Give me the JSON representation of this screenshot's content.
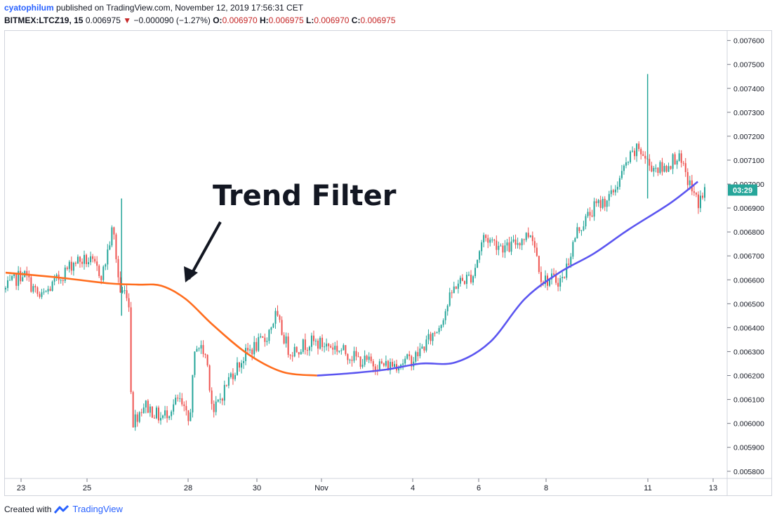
{
  "header": {
    "user": "cyatophilum",
    "published": "published on TradingView.com, November 12, 2019 17:56:31 CET",
    "symbol": "BITMEX:LTCZ19, 15",
    "last": "0.006975",
    "down_glyph": "▼",
    "change": "−0.000090 (−1.27%)",
    "o_label": "O:",
    "o": "0.006970",
    "h_label": "H:",
    "h": "0.006975",
    "l_label": "L:",
    "l": "0.006970",
    "c_label": "C:",
    "c": "0.006975"
  },
  "annotation": "Trend Filter",
  "footer": {
    "created": "Created with",
    "brand": "TradingView"
  },
  "colors": {
    "up": "#26a69a",
    "down": "#ef5350",
    "orange": "#ff6d1e",
    "purple": "#5b55f0",
    "badge": "#26a69a"
  },
  "chart_data": {
    "type": "candlestick",
    "x_ticks": [
      "23",
      "25",
      "28",
      "30",
      "Nov",
      "4",
      "6",
      "8",
      "11",
      "13"
    ],
    "y_ticks": [
      "0.005800",
      "0.005900",
      "0.006000",
      "0.006100",
      "0.006200",
      "0.006300",
      "0.006400",
      "0.006500",
      "0.006600",
      "0.006700",
      "0.006800",
      "0.006900",
      "0.007000",
      "0.007100",
      "0.007200",
      "0.007300",
      "0.007400",
      "0.007500",
      "0.007600"
    ],
    "ylim": [
      0.00577,
      0.00764
    ],
    "last_price": 0.006975,
    "countdown": "03:29",
    "trend_filter": {
      "name": "Trend Filter",
      "bearish_color": "#ff6d1e",
      "bullish_color": "#5b55f0",
      "points": [
        {
          "x": 0.0,
          "y": 0.00663
        },
        {
          "x": 1.5,
          "y": 0.00661
        },
        {
          "x": 3.0,
          "y": 0.006585
        },
        {
          "x": 3.8,
          "y": 0.00658
        },
        {
          "x": 4.5,
          "y": 0.006575
        },
        {
          "x": 5.2,
          "y": 0.00652
        },
        {
          "x": 6.0,
          "y": 0.00641
        },
        {
          "x": 7.0,
          "y": 0.00629
        },
        {
          "x": 8.0,
          "y": 0.006215
        },
        {
          "x": 9.0,
          "y": 0.0062
        },
        {
          "x": 10.0,
          "y": 0.00621
        },
        {
          "x": 11.0,
          "y": 0.006225
        },
        {
          "x": 12.0,
          "y": 0.00625
        },
        {
          "x": 13.0,
          "y": 0.006255
        },
        {
          "x": 14.0,
          "y": 0.00634
        },
        {
          "x": 15.0,
          "y": 0.00652
        },
        {
          "x": 16.0,
          "y": 0.00663
        },
        {
          "x": 17.0,
          "y": 0.00671
        },
        {
          "x": 18.0,
          "y": 0.00681
        },
        {
          "x": 19.2,
          "y": 0.00692
        },
        {
          "x": 20.0,
          "y": 0.00701
        }
      ],
      "switch_x": 9.0
    },
    "price_path": [
      {
        "x": 0.0,
        "y": 0.00656
      },
      {
        "x": 0.5,
        "y": 0.00663
      },
      {
        "x": 1.0,
        "y": 0.00652
      },
      {
        "x": 1.5,
        "y": 0.0066
      },
      {
        "x": 2.0,
        "y": 0.00668
      },
      {
        "x": 2.4,
        "y": 0.00668
      },
      {
        "x": 2.8,
        "y": 0.00662
      },
      {
        "x": 3.1,
        "y": 0.00682
      },
      {
        "x": 3.3,
        "y": 0.00655
      },
      {
        "x": 3.55,
        "y": 0.00655
      },
      {
        "x": 3.65,
        "y": 0.006
      },
      {
        "x": 4.0,
        "y": 0.00608
      },
      {
        "x": 4.5,
        "y": 0.00602
      },
      {
        "x": 5.0,
        "y": 0.0061
      },
      {
        "x": 5.3,
        "y": 0.006
      },
      {
        "x": 5.5,
        "y": 0.00634
      },
      {
        "x": 5.8,
        "y": 0.00628
      },
      {
        "x": 6.0,
        "y": 0.00604
      },
      {
        "x": 6.5,
        "y": 0.0062
      },
      {
        "x": 7.0,
        "y": 0.0063
      },
      {
        "x": 7.5,
        "y": 0.00635
      },
      {
        "x": 7.8,
        "y": 0.00645
      },
      {
        "x": 8.2,
        "y": 0.0063
      },
      {
        "x": 8.8,
        "y": 0.00634
      },
      {
        "x": 9.5,
        "y": 0.00632
      },
      {
        "x": 10.3,
        "y": 0.00626
      },
      {
        "x": 11.0,
        "y": 0.00624
      },
      {
        "x": 11.8,
        "y": 0.00627
      },
      {
        "x": 12.5,
        "y": 0.0064
      },
      {
        "x": 13.0,
        "y": 0.00658
      },
      {
        "x": 13.5,
        "y": 0.00662
      },
      {
        "x": 13.8,
        "y": 0.00678
      },
      {
        "x": 14.5,
        "y": 0.00673
      },
      {
        "x": 15.2,
        "y": 0.0068
      },
      {
        "x": 15.5,
        "y": 0.0066
      },
      {
        "x": 16.1,
        "y": 0.0066
      },
      {
        "x": 16.5,
        "y": 0.0068
      },
      {
        "x": 17.0,
        "y": 0.0069
      },
      {
        "x": 17.5,
        "y": 0.00695
      },
      {
        "x": 18.0,
        "y": 0.0071
      },
      {
        "x": 18.3,
        "y": 0.00715
      },
      {
        "x": 18.6,
        "y": 0.00708
      },
      {
        "x": 19.0,
        "y": 0.00706
      },
      {
        "x": 19.4,
        "y": 0.00712
      },
      {
        "x": 19.7,
        "y": 0.00702
      },
      {
        "x": 20.0,
        "y": 0.00692
      },
      {
        "x": 20.2,
        "y": 0.00697
      }
    ],
    "wicks": [
      {
        "x": 3.35,
        "lo": 0.00645,
        "hi": 0.00694
      },
      {
        "x": 18.55,
        "lo": 0.00694,
        "hi": 0.00746
      }
    ]
  }
}
